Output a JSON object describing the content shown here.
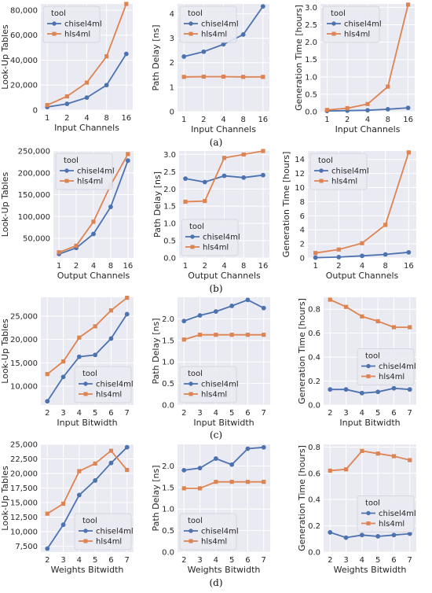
{
  "captions": [
    "(a)",
    "(b)",
    "(c)",
    "(d)"
  ],
  "colors": {
    "chisel4ml": "#4c72b0",
    "hls4ml": "#dd8452",
    "plot_bg": "#eaeaf2",
    "grid": "#ffffff"
  },
  "chart_data": [
    {
      "type": "line",
      "xlabel": "Input Channels",
      "ylabel": "Look-Up Tables",
      "categories": [
        "1",
        "2",
        "4",
        "8",
        "16"
      ],
      "ylim": [
        0,
        85000
      ],
      "yticks": [
        0,
        20000,
        40000,
        60000,
        80000
      ],
      "ytick_labels": [
        "0",
        "20,000",
        "40,000",
        "60,000",
        "80,000"
      ],
      "legend": {
        "title": "tool",
        "position": "upper-left"
      },
      "series": [
        {
          "name": "chisel4ml",
          "values": [
            2500,
            5000,
            10000,
            20000,
            45000
          ]
        },
        {
          "name": "hls4ml",
          "values": [
            4000,
            11000,
            22000,
            43000,
            85000
          ]
        }
      ]
    },
    {
      "type": "line",
      "xlabel": "Input Channels",
      "ylabel": "Path Delay [ns]",
      "categories": [
        "1",
        "2",
        "4",
        "8",
        "16"
      ],
      "ylim": [
        0,
        4.4
      ],
      "yticks": [
        0,
        1,
        2,
        3,
        4
      ],
      "ytick_labels": [
        "0",
        "1",
        "2",
        "3",
        "4"
      ],
      "legend": {
        "title": "tool",
        "position": "upper-left"
      },
      "series": [
        {
          "name": "chisel4ml",
          "values": [
            2.25,
            2.45,
            2.75,
            3.15,
            4.3
          ]
        },
        {
          "name": "hls4ml",
          "values": [
            1.42,
            1.43,
            1.43,
            1.42,
            1.42
          ]
        }
      ]
    },
    {
      "type": "line",
      "xlabel": "Input Channels",
      "ylabel": "Generation Time [hours]",
      "categories": [
        "1",
        "2",
        "4",
        "8",
        "16"
      ],
      "ylim": [
        0,
        3.1
      ],
      "yticks": [
        0,
        0.5,
        1,
        1.5,
        2,
        2.5,
        3
      ],
      "ytick_labels": [
        "0.0",
        "0.5",
        "1.0",
        "1.5",
        "2.0",
        "2.5",
        "3.0"
      ],
      "legend": {
        "title": "tool",
        "position": "upper-left"
      },
      "series": [
        {
          "name": "chisel4ml",
          "values": [
            0.02,
            0.03,
            0.04,
            0.07,
            0.11
          ]
        },
        {
          "name": "hls4ml",
          "values": [
            0.05,
            0.1,
            0.22,
            0.72,
            3.08
          ]
        }
      ]
    },
    {
      "type": "line",
      "xlabel": "Output Channels",
      "ylabel": "Look-Up Tables",
      "categories": [
        "1",
        "2",
        "4",
        "8",
        "16"
      ],
      "ylim": [
        5000,
        250000
      ],
      "yticks": [
        50000,
        100000,
        150000,
        200000,
        250000
      ],
      "ytick_labels": [
        "50,000",
        "100,000",
        "150,000",
        "200,000",
        "250,000"
      ],
      "legend": {
        "title": "tool",
        "position": "upper-left"
      },
      "series": [
        {
          "name": "chisel4ml",
          "values": [
            14000,
            28000,
            60000,
            122000,
            228000
          ]
        },
        {
          "name": "hls4ml",
          "values": [
            18000,
            33000,
            88000,
            172000,
            243000
          ]
        }
      ]
    },
    {
      "type": "line",
      "xlabel": "Output Channels",
      "ylabel": "Path Delay [ns]",
      "categories": [
        "1",
        "2",
        "4",
        "8",
        "16"
      ],
      "ylim": [
        0,
        3.1
      ],
      "yticks": [
        0,
        0.5,
        1,
        1.5,
        2,
        2.5,
        3
      ],
      "ytick_labels": [
        "0.0",
        "0.5",
        "1.0",
        "1.5",
        "2.0",
        "2.5",
        "3.0"
      ],
      "legend": {
        "title": "tool",
        "position": "lower-left"
      },
      "series": [
        {
          "name": "chisel4ml",
          "values": [
            2.3,
            2.2,
            2.38,
            2.33,
            2.4
          ]
        },
        {
          "name": "hls4ml",
          "values": [
            1.63,
            1.65,
            2.9,
            3.0,
            3.1
          ]
        }
      ]
    },
    {
      "type": "line",
      "xlabel": "Output Channels",
      "ylabel": "Generation Time [hours]",
      "categories": [
        "1",
        "2",
        "4",
        "8",
        "16"
      ],
      "ylim": [
        0,
        15.2
      ],
      "yticks": [
        0,
        2,
        4,
        6,
        8,
        10,
        12,
        14
      ],
      "ytick_labels": [
        "0",
        "2",
        "4",
        "6",
        "8",
        "10",
        "12",
        "14"
      ],
      "legend": {
        "title": "tool",
        "position": "upper-left"
      },
      "series": [
        {
          "name": "chisel4ml",
          "values": [
            0.05,
            0.12,
            0.3,
            0.5,
            0.8
          ]
        },
        {
          "name": "hls4ml",
          "values": [
            0.7,
            1.2,
            2.1,
            4.7,
            15.0
          ]
        }
      ]
    },
    {
      "type": "line",
      "xlabel": "Input Bitwidth",
      "ylabel": "Look-Up Tables",
      "categories": [
        "2",
        "3",
        "4",
        "5",
        "6",
        "7"
      ],
      "ylim": [
        6000,
        29000
      ],
      "yticks": [
        10000,
        15000,
        20000,
        25000
      ],
      "ytick_labels": [
        "10,000",
        "15,000",
        "20,000",
        "25,000"
      ],
      "legend": {
        "title": "tool",
        "position": "lower-right"
      },
      "series": [
        {
          "name": "chisel4ml",
          "values": [
            6800,
            12000,
            16300,
            16700,
            20200,
            25400
          ]
        },
        {
          "name": "hls4ml",
          "values": [
            12600,
            15300,
            20400,
            22800,
            26200,
            28900
          ]
        }
      ]
    },
    {
      "type": "line",
      "xlabel": "Input Bitwidth",
      "ylabel": "Path Delay [ns]",
      "categories": [
        "2",
        "3",
        "4",
        "5",
        "6",
        "7"
      ],
      "ylim": [
        0,
        2.5
      ],
      "yticks": [
        0,
        0.5,
        1,
        1.5,
        2
      ],
      "ytick_labels": [
        "0.0",
        "0.5",
        "1.0",
        "1.5",
        "2.0"
      ],
      "legend": {
        "title": "tool",
        "position": "lower-left"
      },
      "series": [
        {
          "name": "chisel4ml",
          "values": [
            1.95,
            2.08,
            2.17,
            2.3,
            2.44,
            2.25
          ]
        },
        {
          "name": "hls4ml",
          "values": [
            1.52,
            1.63,
            1.63,
            1.63,
            1.63,
            1.63
          ]
        }
      ]
    },
    {
      "type": "line",
      "xlabel": "Input Bitwidth",
      "ylabel": "Generation Time [hours]",
      "categories": [
        "2",
        "3",
        "4",
        "5",
        "6",
        "7"
      ],
      "ylim": [
        0,
        0.9
      ],
      "yticks": [
        0,
        0.2,
        0.4,
        0.6,
        0.8
      ],
      "ytick_labels": [
        "0.0",
        "0.2",
        "0.4",
        "0.6",
        "0.8"
      ],
      "legend": {
        "title": "tool",
        "position": "center-right"
      },
      "series": [
        {
          "name": "chisel4ml",
          "values": [
            0.13,
            0.13,
            0.1,
            0.11,
            0.14,
            0.13
          ]
        },
        {
          "name": "hls4ml",
          "values": [
            0.88,
            0.82,
            0.74,
            0.7,
            0.65,
            0.65
          ]
        }
      ]
    },
    {
      "type": "line",
      "xlabel": "Weights Bitwidth",
      "ylabel": "Look-Up Tables",
      "categories": [
        "2",
        "3",
        "4",
        "5",
        "6",
        "7"
      ],
      "ylim": [
        6500,
        25000
      ],
      "yticks": [
        7500,
        10000,
        12500,
        15000,
        17500,
        20000,
        22500,
        25000
      ],
      "ytick_labels": [
        "7,500",
        "10,000",
        "12,500",
        "15,000",
        "17,500",
        "20,000",
        "22,500",
        "25,000"
      ],
      "legend": {
        "title": "tool",
        "position": "lower-right"
      },
      "series": [
        {
          "name": "chisel4ml",
          "values": [
            7100,
            11200,
            16300,
            18800,
            21800,
            24500
          ]
        },
        {
          "name": "hls4ml",
          "values": [
            13100,
            14800,
            20400,
            21700,
            23900,
            20600
          ]
        }
      ]
    },
    {
      "type": "line",
      "xlabel": "Weights Bitwidth",
      "ylabel": "Path Delay [ns]",
      "categories": [
        "2",
        "3",
        "4",
        "5",
        "6",
        "7"
      ],
      "ylim": [
        0,
        2.5
      ],
      "yticks": [
        0,
        0.5,
        1,
        1.5,
        2
      ],
      "ytick_labels": [
        "0.0",
        "0.5",
        "1.0",
        "1.5",
        "2.0"
      ],
      "legend": {
        "title": "tool",
        "position": "lower-left"
      },
      "series": [
        {
          "name": "chisel4ml",
          "values": [
            1.9,
            1.95,
            2.17,
            2.03,
            2.4,
            2.43
          ]
        },
        {
          "name": "hls4ml",
          "values": [
            1.48,
            1.48,
            1.63,
            1.63,
            1.63,
            1.63
          ]
        }
      ]
    },
    {
      "type": "line",
      "xlabel": "Weights Bitwidth",
      "ylabel": "Generation Time [hours]",
      "categories": [
        "2",
        "3",
        "4",
        "5",
        "6",
        "7"
      ],
      "ylim": [
        0,
        0.82
      ],
      "yticks": [
        0,
        0.2,
        0.4,
        0.6,
        0.8
      ],
      "ytick_labels": [
        "0.0",
        "0.2",
        "0.4",
        "0.6",
        "0.8"
      ],
      "legend": {
        "title": "tool",
        "position": "center-right"
      },
      "series": [
        {
          "name": "chisel4ml",
          "values": [
            0.15,
            0.11,
            0.13,
            0.12,
            0.13,
            0.14
          ]
        },
        {
          "name": "hls4ml",
          "values": [
            0.62,
            0.63,
            0.77,
            0.75,
            0.73,
            0.7
          ]
        }
      ]
    }
  ]
}
